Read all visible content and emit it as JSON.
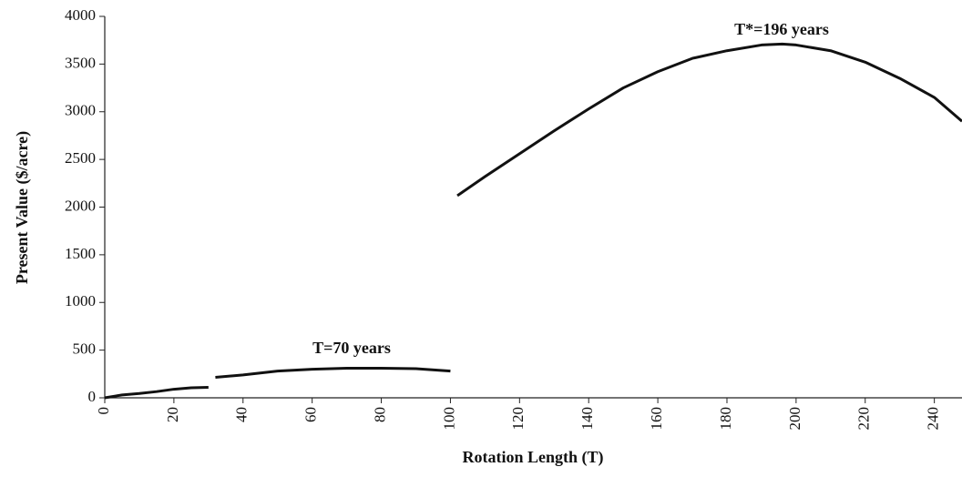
{
  "chart_data": {
    "type": "line",
    "xlabel": "Rotation Length (T)",
    "ylabel": "Present Value ($/acre)",
    "annotations": [
      "T*=196 years",
      "T=70 years"
    ],
    "x": [
      0,
      5,
      10,
      15,
      20,
      25,
      30,
      31,
      32,
      40,
      50,
      60,
      70,
      80,
      90,
      100,
      101,
      102,
      110,
      120,
      130,
      140,
      150,
      160,
      170,
      180,
      190,
      196,
      200,
      210,
      220,
      230,
      240,
      248
    ],
    "series": [
      {
        "name": "Present Value",
        "color": "#111111",
        "values": [
          0,
          30,
          45,
          65,
          90,
          105,
          110,
          null,
          215,
          240,
          280,
          300,
          310,
          310,
          305,
          280,
          null,
          2120,
          2320,
          2560,
          2800,
          3030,
          3250,
          3420,
          3560,
          3640,
          3700,
          3710,
          3700,
          3640,
          3520,
          3350,
          3150,
          2900
        ]
      }
    ],
    "xlim": [
      0,
      248
    ],
    "ylim": [
      0,
      4000
    ],
    "xticks": [
      0,
      20,
      40,
      60,
      80,
      100,
      120,
      140,
      160,
      180,
      200,
      220,
      240
    ],
    "yticks": [
      0,
      500,
      1000,
      1500,
      2000,
      2500,
      3000,
      3500,
      4000
    ],
    "grid": false
  }
}
